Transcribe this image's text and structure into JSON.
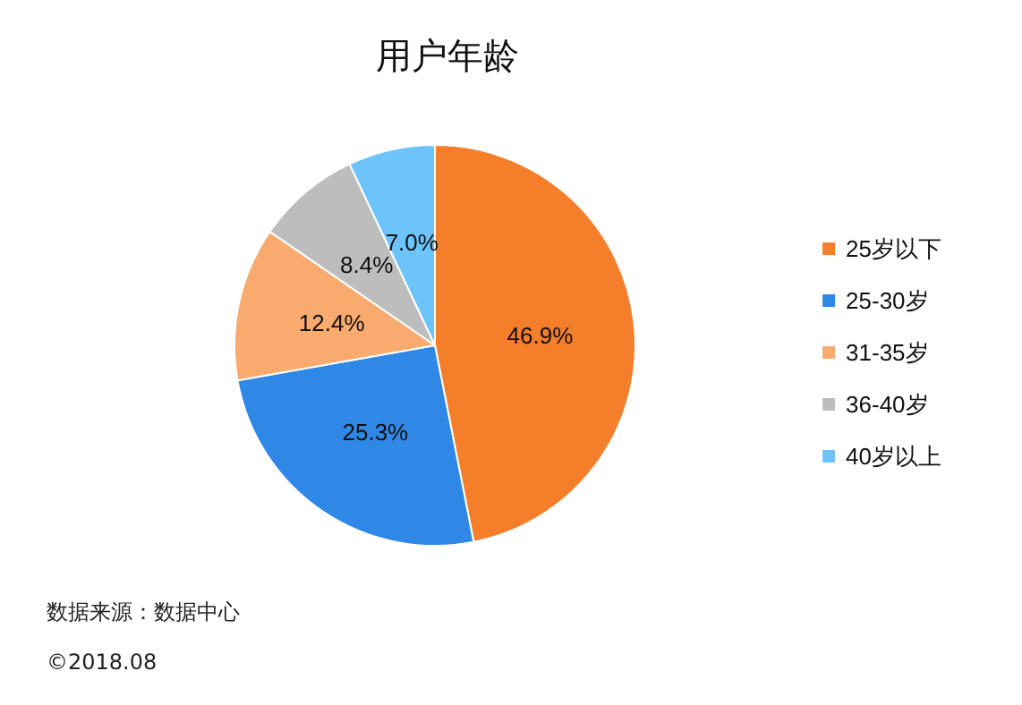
{
  "chart_data": {
    "type": "pie",
    "title": "用户年龄",
    "categories": [
      "25岁以下",
      "25-30岁",
      "31-35岁",
      "36-40岁",
      "40岁以上"
    ],
    "values": [
      46.9,
      25.3,
      12.4,
      8.4,
      7.0
    ],
    "colors": [
      "#f57e2b",
      "#2f87e6",
      "#f9aa6e",
      "#bdbdbd",
      "#6cc4fb"
    ],
    "value_labels": [
      "46.9%",
      "25.3%",
      "12.4%",
      "8.4%",
      "7.0%"
    ],
    "legend": "right",
    "annotations": [
      "数据来源：数据中心",
      "©2018.08"
    ]
  }
}
